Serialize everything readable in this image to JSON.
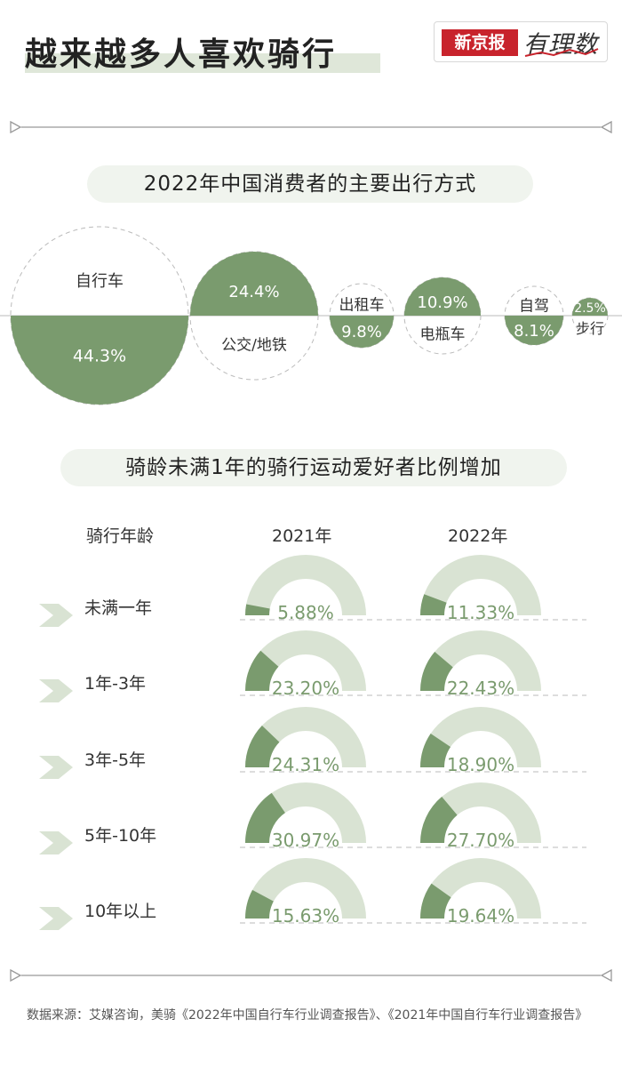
{
  "header": {
    "title": "越来越多人喜欢骑行",
    "logo_brand": "新京报",
    "logo_column": "有理数"
  },
  "colors": {
    "dark_green": "#7a9b6e",
    "light_green": "#d9e3d3",
    "title_highlight": "#dfe7d9",
    "brand_red": "#c8232c"
  },
  "section1": {
    "title": "2022年中国消费者的主要出行方式"
  },
  "section2": {
    "title": "骑龄未满1年的骑行运动爱好者比例增加"
  },
  "chart_data": [
    {
      "type": "bubble",
      "title": "2022年中国消费者的主要出行方式",
      "categories": [
        "自行车",
        "公交/地铁",
        "出租车",
        "电瓶车",
        "自驾",
        "步行"
      ],
      "values": [
        44.3,
        24.4,
        9.8,
        10.9,
        8.1,
        2.5
      ],
      "value_labels": [
        "44.3%",
        "24.4%",
        "9.8%",
        "10.9%",
        "8.1%",
        "2.5%"
      ],
      "unit": "%"
    },
    {
      "type": "gauge",
      "title": "骑龄未满1年的骑行运动爱好者比例增加",
      "row_header": "骑行年龄",
      "categories": [
        "未满一年",
        "1年-3年",
        "3年-5年",
        "5年-10年",
        "10年以上"
      ],
      "series": [
        {
          "name": "2021年",
          "values": [
            5.88,
            23.2,
            24.31,
            30.97,
            15.63
          ],
          "labels": [
            "5.88%",
            "23.20%",
            "24.31%",
            "30.97%",
            "15.63%"
          ]
        },
        {
          "name": "2022年",
          "values": [
            11.33,
            22.43,
            18.9,
            27.7,
            19.64
          ],
          "labels": [
            "11.33%",
            "22.43%",
            "18.90%",
            "27.70%",
            "19.64%"
          ]
        }
      ],
      "unit": "%"
    }
  ],
  "footer": {
    "source": "数据来源：艾媒咨询，美骑《2022年中国自行车行业调查报告》、《2021年中国自行车行业调查报告》"
  }
}
